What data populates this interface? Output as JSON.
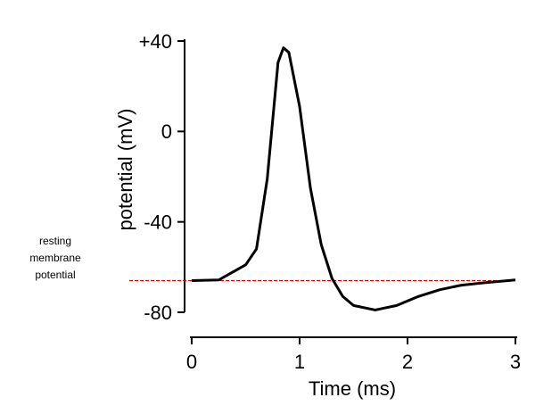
{
  "chart_data": {
    "type": "line",
    "y_label": "potential (mV)",
    "x_label": "Time (ms)",
    "annotation_lines": [
      "resting",
      "membrane",
      "potential"
    ],
    "resting_potential": -66,
    "resting_color": "#e00000",
    "x": [
      0,
      0.25,
      0.5,
      0.6,
      0.7,
      0.8,
      0.85,
      0.9,
      1.0,
      1.1,
      1.2,
      1.3,
      1.4,
      1.5,
      1.7,
      1.9,
      2.1,
      2.3,
      2.5,
      2.7,
      3.0
    ],
    "values": [
      -66,
      -65.7,
      -59,
      -52,
      -21,
      30.5,
      37,
      35,
      11,
      -25,
      -50,
      -65,
      -73,
      -77,
      -79,
      -77,
      -73,
      -70,
      -68,
      -67,
      -65.7
    ],
    "color": "#000000",
    "xlim": [
      0,
      3
    ],
    "xticks": [
      0,
      1,
      2,
      3
    ],
    "ylim": [
      -80,
      40
    ],
    "yticks": [
      {
        "value": 40,
        "label": "+40"
      },
      0,
      -40,
      -80
    ]
  }
}
